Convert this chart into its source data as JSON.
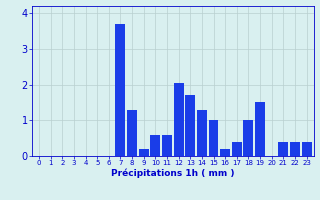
{
  "hours": [
    0,
    1,
    2,
    3,
    4,
    5,
    6,
    7,
    8,
    9,
    10,
    11,
    12,
    13,
    14,
    15,
    16,
    17,
    18,
    19,
    20,
    21,
    22,
    23
  ],
  "values": [
    0,
    0,
    0,
    0,
    0,
    0,
    0,
    3.7,
    1.3,
    0.2,
    0.6,
    0.6,
    2.05,
    1.7,
    1.3,
    1.0,
    0.2,
    0.4,
    1.0,
    1.5,
    0,
    0.4,
    0.4,
    0.4
  ],
  "bar_color": "#1a3de8",
  "background_color": "#d9f0f0",
  "grid_color": "#b8d0d0",
  "xlabel": "Précipitations 1h ( mm )",
  "xlabel_color": "#0000cc",
  "tick_color": "#0000cc",
  "ylim": [
    0,
    4.2
  ],
  "yticks": [
    0,
    1,
    2,
    3,
    4
  ],
  "bar_width": 0.85
}
